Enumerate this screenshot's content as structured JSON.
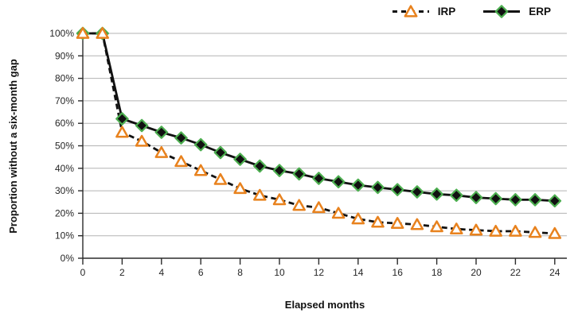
{
  "chart_data": {
    "type": "line",
    "title": "",
    "xlabel": "Elapsed months",
    "ylabel": "Proportion without a six-month gap",
    "xlim": [
      0,
      24.6
    ],
    "ylim": [
      0,
      100
    ],
    "grid": "horizontal",
    "legend_position": "top-right",
    "x": [
      0,
      1,
      2,
      3,
      4,
      5,
      6,
      7,
      8,
      9,
      10,
      11,
      12,
      13,
      14,
      15,
      16,
      17,
      18,
      19,
      20,
      21,
      22,
      23,
      24
    ],
    "xticks": [
      0,
      2,
      4,
      6,
      8,
      10,
      12,
      14,
      16,
      18,
      20,
      22,
      24
    ],
    "yticks": [
      0,
      10,
      20,
      30,
      40,
      50,
      60,
      70,
      80,
      90,
      100
    ],
    "ytick_labels": [
      "0%",
      "10%",
      "20%",
      "30%",
      "40%",
      "50%",
      "60%",
      "70%",
      "80%",
      "90%",
      "100%"
    ],
    "colors": {
      "gridline": "#b3b3b3",
      "axis": "#2b2b2b",
      "tick_text": "#262626",
      "irp_orange": "#e8821e",
      "erp_green": "#4cae4f",
      "series_line": "#111111"
    },
    "series": [
      {
        "name": "IRP",
        "line_style": "dashed",
        "line_color": "#111111",
        "marker": "triangle",
        "marker_fill": "#ffffff",
        "marker_stroke": "#e8821e",
        "values": [
          100,
          100,
          56,
          52,
          47,
          43,
          39,
          35,
          31,
          28,
          26,
          23.5,
          22.5,
          20,
          17.5,
          16,
          15.5,
          15,
          14,
          13,
          12.5,
          12,
          12,
          11.5,
          11
        ]
      },
      {
        "name": "ERP",
        "line_style": "solid",
        "line_color": "#111111",
        "marker": "diamond",
        "marker_fill": "#111111",
        "marker_stroke": "#4cae4f",
        "values": [
          100,
          100,
          62,
          59,
          56,
          53.5,
          50.5,
          47,
          44,
          41,
          39,
          37.5,
          35.5,
          34,
          32.5,
          31.5,
          30.5,
          29.5,
          28.5,
          28,
          27,
          26.5,
          26,
          26,
          25.5
        ]
      }
    ]
  }
}
